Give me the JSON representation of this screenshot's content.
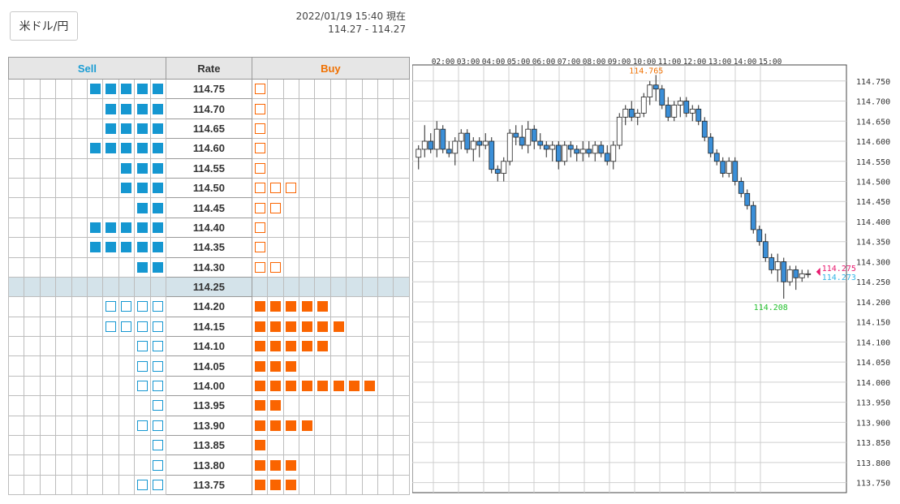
{
  "header": {
    "pair_button": "米ドル/円",
    "timestamp": "2022/01/19 15:40 現在",
    "bid_ask": "114.27 - 114.27"
  },
  "colors": {
    "sell": "#1597d1",
    "buy": "#fa6400",
    "current_row": "#d4e3ea",
    "ask_line": "#e8196e",
    "bid_line": "#32b4e6",
    "low_marker": "#1fbf2a"
  },
  "order_book": {
    "headers": {
      "sell": "Sell",
      "rate": "Rate",
      "buy": "Buy"
    },
    "current_rate": "114.25",
    "rows": [
      {
        "rate": "114.75",
        "sell": 5,
        "sell_type": "filled",
        "buy": 1,
        "buy_type": "outline"
      },
      {
        "rate": "114.70",
        "sell": 4,
        "sell_type": "filled",
        "buy": 1,
        "buy_type": "outline"
      },
      {
        "rate": "114.65",
        "sell": 4,
        "sell_type": "filled",
        "buy": 1,
        "buy_type": "outline"
      },
      {
        "rate": "114.60",
        "sell": 5,
        "sell_type": "filled",
        "buy": 1,
        "buy_type": "outline"
      },
      {
        "rate": "114.55",
        "sell": 3,
        "sell_type": "filled",
        "buy": 1,
        "buy_type": "outline"
      },
      {
        "rate": "114.50",
        "sell": 3,
        "sell_type": "filled",
        "buy": 3,
        "buy_type": "outline"
      },
      {
        "rate": "114.45",
        "sell": 2,
        "sell_type": "filled",
        "buy": 2,
        "buy_type": "outline"
      },
      {
        "rate": "114.40",
        "sell": 5,
        "sell_type": "filled",
        "buy": 1,
        "buy_type": "outline"
      },
      {
        "rate": "114.35",
        "sell": 5,
        "sell_type": "filled",
        "buy": 1,
        "buy_type": "outline"
      },
      {
        "rate": "114.30",
        "sell": 2,
        "sell_type": "filled",
        "buy": 2,
        "buy_type": "outline"
      },
      {
        "rate": "114.25",
        "sell": 0,
        "sell_type": "filled",
        "buy": 0,
        "buy_type": "filled"
      },
      {
        "rate": "114.20",
        "sell": 4,
        "sell_type": "outline",
        "buy": 5,
        "buy_type": "filled"
      },
      {
        "rate": "114.15",
        "sell": 4,
        "sell_type": "outline",
        "buy": 6,
        "buy_type": "filled"
      },
      {
        "rate": "114.10",
        "sell": 2,
        "sell_type": "outline",
        "buy": 5,
        "buy_type": "filled"
      },
      {
        "rate": "114.05",
        "sell": 2,
        "sell_type": "outline",
        "buy": 3,
        "buy_type": "filled"
      },
      {
        "rate": "114.00",
        "sell": 2,
        "sell_type": "outline",
        "buy": 8,
        "buy_type": "filled"
      },
      {
        "rate": "113.95",
        "sell": 1,
        "sell_type": "outline",
        "buy": 2,
        "buy_type": "filled"
      },
      {
        "rate": "113.90",
        "sell": 2,
        "sell_type": "outline",
        "buy": 4,
        "buy_type": "filled"
      },
      {
        "rate": "113.85",
        "sell": 1,
        "sell_type": "outline",
        "buy": 1,
        "buy_type": "filled"
      },
      {
        "rate": "113.80",
        "sell": 1,
        "sell_type": "outline",
        "buy": 3,
        "buy_type": "filled"
      },
      {
        "rate": "113.75",
        "sell": 2,
        "sell_type": "outline",
        "buy": 3,
        "buy_type": "filled"
      }
    ]
  },
  "chart_data": {
    "type": "candlestick",
    "x_ticks": [
      "02:00",
      "03:00",
      "04:00",
      "05:00",
      "06:00",
      "07:00",
      "08:00",
      "09:00",
      "10:00",
      "11:00",
      "12:00",
      "13:00",
      "14:00",
      "15:00"
    ],
    "y_ticks": [
      "114.750",
      "114.700",
      "114.650",
      "114.600",
      "114.550",
      "114.500",
      "114.450",
      "114.400",
      "114.350",
      "114.300",
      "114.250",
      "114.200",
      "114.150",
      "114.100",
      "114.050",
      "114.000",
      "113.950",
      "113.900",
      "113.850",
      "113.800",
      "113.750"
    ],
    "ylim": [
      113.725,
      114.79
    ],
    "high_label": "114.765",
    "low_label": "114.208",
    "ask_label": "114.275",
    "bid_label": "114.273",
    "ask": 114.275,
    "bid": 114.273,
    "candles": [
      [
        114.56,
        114.59,
        114.53,
        114.58
      ],
      [
        114.58,
        114.64,
        114.56,
        114.6
      ],
      [
        114.6,
        114.62,
        114.57,
        114.58
      ],
      [
        114.58,
        114.65,
        114.56,
        114.63
      ],
      [
        114.63,
        114.64,
        114.57,
        114.58
      ],
      [
        114.58,
        114.6,
        114.56,
        114.57
      ],
      [
        114.57,
        114.61,
        114.54,
        114.6
      ],
      [
        114.6,
        114.63,
        114.58,
        114.62
      ],
      [
        114.62,
        114.63,
        114.57,
        114.58
      ],
      [
        114.58,
        114.61,
        114.55,
        114.6
      ],
      [
        114.6,
        114.61,
        114.56,
        114.59
      ],
      [
        114.59,
        114.62,
        114.58,
        114.6
      ],
      [
        114.6,
        114.61,
        114.52,
        114.53
      ],
      [
        114.53,
        114.54,
        114.5,
        114.52
      ],
      [
        114.52,
        114.56,
        114.5,
        114.55
      ],
      [
        114.55,
        114.63,
        114.54,
        114.62
      ],
      [
        114.62,
        114.64,
        114.59,
        114.61
      ],
      [
        114.61,
        114.64,
        114.58,
        114.59
      ],
      [
        114.59,
        114.65,
        114.57,
        114.63
      ],
      [
        114.63,
        114.64,
        114.58,
        114.6
      ],
      [
        114.6,
        114.62,
        114.58,
        114.59
      ],
      [
        114.59,
        114.6,
        114.56,
        114.58
      ],
      [
        114.58,
        114.6,
        114.55,
        114.59
      ],
      [
        114.59,
        114.6,
        114.53,
        114.55
      ],
      [
        114.55,
        114.6,
        114.54,
        114.59
      ],
      [
        114.59,
        114.6,
        114.56,
        114.58
      ],
      [
        114.58,
        114.59,
        114.55,
        114.57
      ],
      [
        114.57,
        114.6,
        114.55,
        114.58
      ],
      [
        114.58,
        114.6,
        114.56,
        114.57
      ],
      [
        114.57,
        114.6,
        114.55,
        114.59
      ],
      [
        114.59,
        114.6,
        114.56,
        114.57
      ],
      [
        114.57,
        114.59,
        114.54,
        114.55
      ],
      [
        114.55,
        114.6,
        114.53,
        114.59
      ],
      [
        114.59,
        114.67,
        114.58,
        114.66
      ],
      [
        114.66,
        114.69,
        114.64,
        114.68
      ],
      [
        114.68,
        114.7,
        114.65,
        114.66
      ],
      [
        114.66,
        114.68,
        114.64,
        114.67
      ],
      [
        114.67,
        114.72,
        114.66,
        114.71
      ],
      [
        114.71,
        114.75,
        114.69,
        114.74
      ],
      [
        114.74,
        114.765,
        114.7,
        114.73
      ],
      [
        114.73,
        114.74,
        114.68,
        114.69
      ],
      [
        114.69,
        114.71,
        114.65,
        114.66
      ],
      [
        114.66,
        114.7,
        114.65,
        114.69
      ],
      [
        114.69,
        114.71,
        114.66,
        114.7
      ],
      [
        114.7,
        114.71,
        114.66,
        114.67
      ],
      [
        114.67,
        114.69,
        114.65,
        114.68
      ],
      [
        114.68,
        114.69,
        114.64,
        114.65
      ],
      [
        114.65,
        114.66,
        114.6,
        114.61
      ],
      [
        114.61,
        114.62,
        114.56,
        114.57
      ],
      [
        114.57,
        114.58,
        114.54,
        114.55
      ],
      [
        114.55,
        114.56,
        114.51,
        114.52
      ],
      [
        114.52,
        114.56,
        114.51,
        114.55
      ],
      [
        114.55,
        114.56,
        114.49,
        114.5
      ],
      [
        114.5,
        114.51,
        114.46,
        114.47
      ],
      [
        114.47,
        114.48,
        114.43,
        114.44
      ],
      [
        114.44,
        114.45,
        114.37,
        114.38
      ],
      [
        114.38,
        114.39,
        114.34,
        114.35
      ],
      [
        114.35,
        114.37,
        114.3,
        114.31
      ],
      [
        114.31,
        114.32,
        114.27,
        114.28
      ],
      [
        114.28,
        114.32,
        114.25,
        114.3
      ],
      [
        114.3,
        114.31,
        114.208,
        114.25
      ],
      [
        114.25,
        114.29,
        114.24,
        114.28
      ],
      [
        114.28,
        114.29,
        114.23,
        114.26
      ],
      [
        114.26,
        114.28,
        114.25,
        114.27
      ],
      [
        114.27,
        114.28,
        114.26,
        114.27
      ]
    ]
  }
}
